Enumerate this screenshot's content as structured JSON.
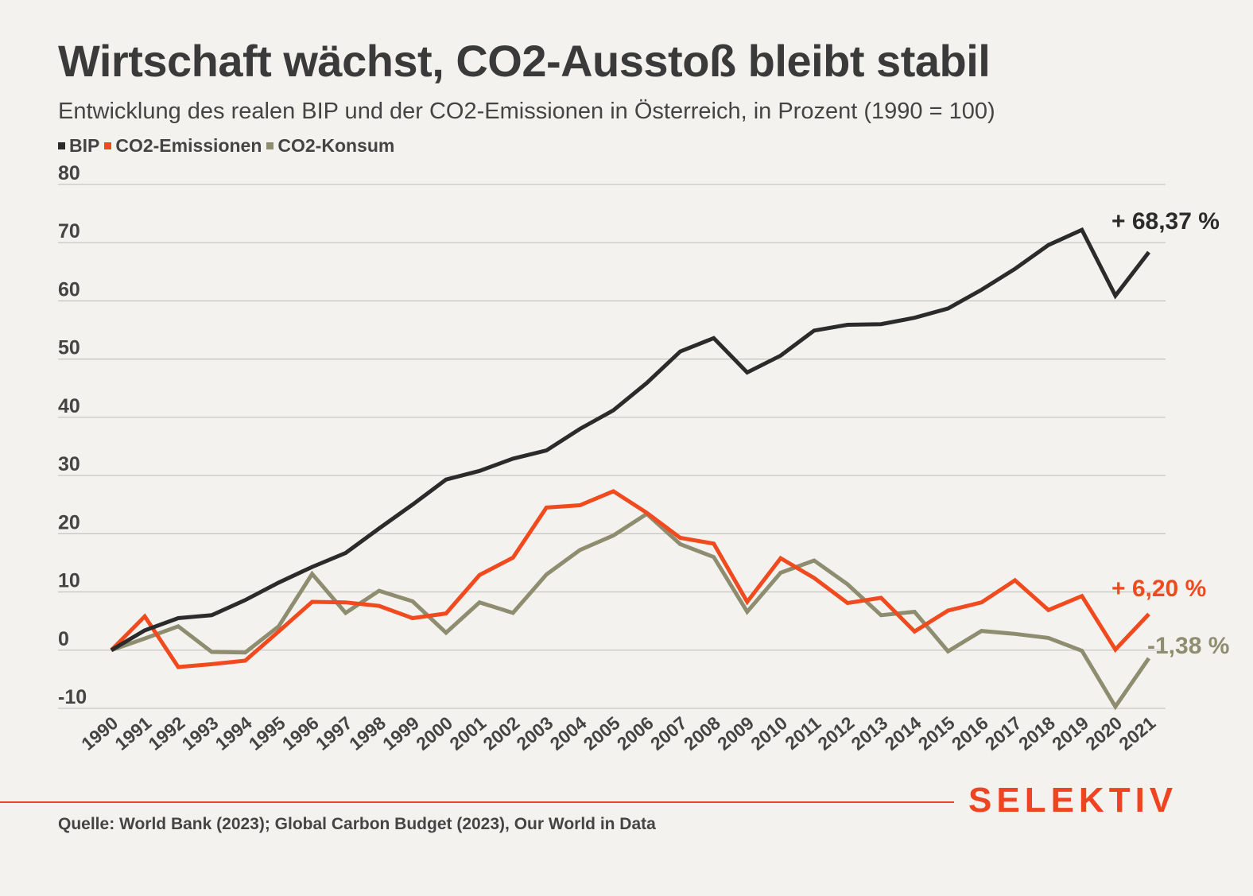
{
  "header": {
    "title": "Wirtschaft wächst, CO2-Ausstoß bleibt stabil",
    "subtitle": "Entwicklung des realen BIP und der CO2-Emissionen in Österreich, in Prozent (1990 = 100)"
  },
  "legend": [
    {
      "label": "BIP",
      "color": "#2b2b2b"
    },
    {
      "label": "CO2-Emissionen",
      "color": "#f04a1e"
    },
    {
      "label": "CO2-Konsum",
      "color": "#8f8d70"
    }
  ],
  "chart_data": {
    "type": "line",
    "x": [
      "1990",
      "1991",
      "1992",
      "1993",
      "1994",
      "1995",
      "1996",
      "1997",
      "1998",
      "1999",
      "2000",
      "2001",
      "2002",
      "2003",
      "2004",
      "2005",
      "2006",
      "2007",
      "2008",
      "2009",
      "2010",
      "2011",
      "2012",
      "2013",
      "2014",
      "2015",
      "2016",
      "2017",
      "2018",
      "2019",
      "2020",
      "2021"
    ],
    "ylim": [
      -10,
      80
    ],
    "yticks": [
      -10,
      0,
      10,
      20,
      30,
      40,
      50,
      60,
      70,
      80
    ],
    "grid": true,
    "legend_position": "top-left",
    "series": [
      {
        "name": "BIP",
        "color": "#2b2b2b",
        "values": [
          0,
          3.4,
          5.5,
          6.0,
          8.6,
          11.6,
          14.3,
          16.7,
          20.9,
          25.0,
          29.3,
          30.8,
          32.9,
          34.3,
          38.0,
          41.2,
          45.9,
          51.3,
          53.6,
          47.7,
          50.6,
          54.9,
          55.9,
          56.0,
          57.1,
          58.7,
          61.9,
          65.5,
          69.6,
          72.2,
          60.9,
          68.37
        ],
        "end_label": "+ 68,37 %"
      },
      {
        "name": "CO2-Emissionen",
        "color": "#f04a1e",
        "values": [
          0,
          5.8,
          -2.9,
          -2.4,
          -1.8,
          3.2,
          8.3,
          8.2,
          7.6,
          5.5,
          6.3,
          12.9,
          15.9,
          24.5,
          24.9,
          27.3,
          23.6,
          19.3,
          18.3,
          8.3,
          15.8,
          12.4,
          8.1,
          9.0,
          3.2,
          6.8,
          8.2,
          12.0,
          6.9,
          9.3,
          0.1,
          6.2
        ],
        "end_label": "+ 6,20 %"
      },
      {
        "name": "CO2-Konsum",
        "color": "#8f8d70",
        "values": [
          0,
          2.0,
          4.1,
          -0.3,
          -0.4,
          4.1,
          13.1,
          6.4,
          10.2,
          8.4,
          3.0,
          8.2,
          6.4,
          13.0,
          17.2,
          19.7,
          23.4,
          18.2,
          16.0,
          6.6,
          13.3,
          15.4,
          11.3,
          6.0,
          6.6,
          -0.2,
          3.3,
          2.8,
          2.1,
          -0.1,
          -9.7,
          -1.38
        ],
        "end_label": "-1,38 %"
      }
    ]
  },
  "footer": {
    "brand": "SELEKTIV",
    "source": "Quelle: World Bank (2023); Global Carbon Budget (2023), Our World in Data"
  }
}
